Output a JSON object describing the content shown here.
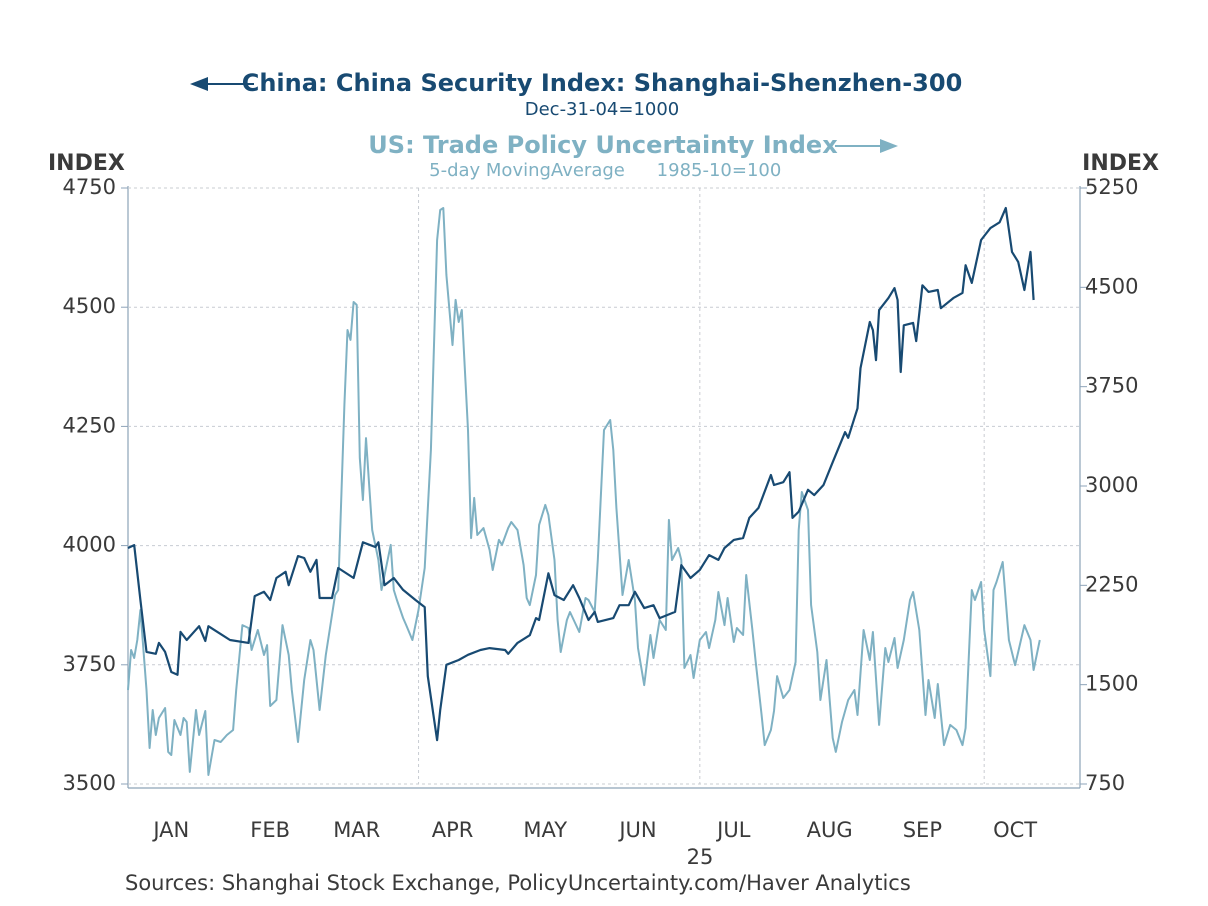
{
  "chart_data": {
    "type": "line",
    "y_label": "INDEX",
    "y2_label": "INDEX",
    "x_sublabel": "25",
    "source": "Sources:  Shanghai Stock Exchange, PolicyUncertainty.com/Haver Analytics",
    "xlim": [
      -4,
      304
    ],
    "xticks": [
      {
        "value": 10,
        "label": "JAN"
      },
      {
        "value": 42,
        "label": "FEB"
      },
      {
        "value": 70,
        "label": "MAR"
      },
      {
        "value": 101,
        "label": "APR"
      },
      {
        "value": 131,
        "label": "MAY"
      },
      {
        "value": 161,
        "label": "JUN"
      },
      {
        "value": 192,
        "label": "JUL"
      },
      {
        "value": 223,
        "label": "AUG"
      },
      {
        "value": 253,
        "label": "SEP"
      },
      {
        "value": 283,
        "label": "OCT"
      }
    ],
    "xgrid": [
      90,
      181,
      273
    ],
    "ylim": [
      3500,
      4750
    ],
    "yticks": [
      3500,
      3750,
      4000,
      4250,
      4500,
      4750
    ],
    "y2lim": [
      750,
      5250
    ],
    "y2ticks": [
      750,
      1500,
      2250,
      3000,
      3750,
      4500,
      5250
    ],
    "grid": true,
    "series": [
      {
        "name": "China: China Security Index: Shanghai-Shenzhen-300",
        "subtitle": "Dec-31-04=1000",
        "color": "#184a72",
        "axis": "y",
        "x": [
          -4,
          -2,
          0,
          2,
          5,
          6,
          8,
          10,
          12,
          13,
          15,
          19,
          21,
          22,
          29,
          35,
          37,
          40,
          42,
          44,
          47,
          48,
          51,
          53,
          55,
          57,
          58,
          62,
          64,
          69,
          72,
          76,
          77,
          79,
          82,
          85,
          89,
          92,
          93,
          96,
          97,
          99,
          103,
          106,
          110,
          113,
          118,
          119,
          122,
          126,
          128,
          129,
          132,
          134,
          137,
          140,
          142,
          145,
          147,
          148,
          153,
          155,
          158,
          160,
          163,
          166,
          168,
          173,
          175,
          178,
          181,
          184,
          187,
          189,
          192,
          195,
          197,
          200,
          204,
          205,
          208,
          210,
          211,
          213,
          216,
          218,
          221,
          224,
          228,
          229,
          232,
          233,
          236,
          237,
          238,
          239,
          242,
          244,
          245,
          246,
          247,
          250,
          251,
          253,
          255,
          258,
          259,
          263,
          266,
          267,
          269,
          272,
          275,
          278,
          280,
          282,
          284,
          286,
          288,
          289
        ],
        "values": [
          3995,
          4001,
          3886,
          3777,
          3773,
          3796,
          3777,
          3735,
          3729,
          3819,
          3802,
          3831,
          3800,
          3831,
          3802,
          3796,
          3894,
          3903,
          3886,
          3932,
          3945,
          3917,
          3978,
          3974,
          3945,
          3970,
          3890,
          3890,
          3953,
          3932,
          4007,
          3997,
          4007,
          3917,
          3932,
          3907,
          3886,
          3871,
          3726,
          3592,
          3655,
          3750,
          3760,
          3771,
          3781,
          3785,
          3781,
          3773,
          3796,
          3812,
          3848,
          3844,
          3942,
          3896,
          3886,
          3917,
          3890,
          3844,
          3861,
          3840,
          3848,
          3875,
          3875,
          3903,
          3869,
          3875,
          3848,
          3861,
          3959,
          3932,
          3949,
          3980,
          3970,
          3995,
          4012,
          4016,
          4058,
          4079,
          4148,
          4127,
          4133,
          4154,
          4058,
          4071,
          4117,
          4106,
          4127,
          4175,
          4238,
          4226,
          4288,
          4372,
          4469,
          4452,
          4389,
          4494,
          4519,
          4540,
          4515,
          4364,
          4462,
          4467,
          4429,
          4546,
          4532,
          4536,
          4498,
          4519,
          4530,
          4588,
          4551,
          4641,
          4666,
          4678,
          4708,
          4616,
          4595,
          4536,
          4616,
          4515
        ]
      },
      {
        "name": "US: Trade Policy Uncertainty Index",
        "subtitle": "5-day MovingAverage",
        "subtitle2": "1985-10=100",
        "color": "#7fb1c3",
        "axis": "y2",
        "x": [
          -4,
          -3,
          -2,
          -1,
          0,
          2,
          3,
          4,
          5,
          6,
          8,
          9,
          10,
          11,
          13,
          14,
          15,
          16,
          18,
          19,
          21,
          22,
          24,
          26,
          28,
          30,
          31,
          33,
          35,
          36,
          38,
          40,
          41,
          42,
          44,
          46,
          48,
          49,
          51,
          53,
          55,
          56,
          58,
          60,
          61,
          63,
          64,
          66,
          67,
          68,
          69,
          70,
          71,
          72,
          73,
          75,
          77,
          78,
          81,
          82,
          83,
          85,
          86,
          88,
          90,
          92,
          94,
          96,
          97,
          98,
          99,
          101,
          102,
          103,
          104,
          106,
          107,
          108,
          109,
          111,
          113,
          114,
          116,
          117,
          119,
          120,
          122,
          124,
          125,
          126,
          128,
          129,
          131,
          132,
          134,
          135,
          136,
          138,
          139,
          142,
          144,
          145,
          147,
          148,
          150,
          152,
          153,
          154,
          156,
          158,
          160,
          161,
          163,
          165,
          166,
          168,
          170,
          171,
          172,
          174,
          175,
          176,
          178,
          179,
          181,
          183,
          184,
          186,
          187,
          189,
          190,
          192,
          193,
          195,
          196,
          198,
          199,
          201,
          202,
          204,
          205,
          206,
          208,
          210,
          212,
          213,
          214,
          216,
          217,
          219,
          220,
          222,
          224,
          225,
          227,
          229,
          231,
          232,
          234,
          236,
          237,
          239,
          241,
          242,
          244,
          245,
          247,
          249,
          250,
          252,
          254,
          255,
          257,
          258,
          260,
          262,
          264,
          266,
          267,
          269,
          270,
          272,
          273,
          275,
          276,
          277,
          279,
          281,
          283,
          284,
          286,
          288,
          289,
          291
        ],
        "values": [
          1460,
          1762,
          1701,
          1837,
          2064,
          1460,
          1022,
          1309,
          1120,
          1248,
          1324,
          992,
          969,
          1233,
          1120,
          1248,
          1218,
          841,
          1309,
          1120,
          1301,
          818,
          1082,
          1067,
          1120,
          1158,
          1460,
          1950,
          1928,
          1762,
          1913,
          1724,
          1799,
          1339,
          1384,
          1950,
          1724,
          1460,
          1067,
          1535,
          1837,
          1762,
          1309,
          1724,
          1875,
          2177,
          2215,
          3612,
          4178,
          4103,
          4389,
          4367,
          3211,
          2894,
          3362,
          2668,
          2441,
          2215,
          2555,
          2215,
          2139,
          2003,
          1950,
          1837,
          2064,
          2381,
          3272,
          4857,
          5084,
          5099,
          4593,
          4064,
          4405,
          4238,
          4329,
          3423,
          2607,
          2910,
          2630,
          2683,
          2517,
          2366,
          2593,
          2555,
          2683,
          2728,
          2668,
          2404,
          2154,
          2101,
          2328,
          2706,
          2857,
          2781,
          2441,
          1988,
          1747,
          1988,
          2049,
          1898,
          2154,
          2139,
          2049,
          2441,
          3423,
          3498,
          3272,
          2834,
          2177,
          2441,
          2139,
          1777,
          1497,
          1875,
          1701,
          1988,
          1913,
          2744,
          2441,
          2532,
          2441,
          1626,
          1724,
          1550,
          1837,
          1898,
          1777,
          1988,
          2200,
          1950,
          2154,
          1822,
          1928,
          1875,
          2328,
          1913,
          1686,
          1271,
          1044,
          1158,
          1301,
          1565,
          1399,
          1460,
          1671,
          2668,
          2955,
          2819,
          2101,
          1747,
          1384,
          1686,
          1097,
          992,
          1218,
          1384,
          1460,
          1271,
          1913,
          1686,
          1898,
          1196,
          1777,
          1671,
          1852,
          1626,
          1837,
          2139,
          2200,
          1913,
          1271,
          1535,
          1248,
          1505,
          1044,
          1196,
          1158,
          1044,
          1173,
          2215,
          2139,
          2275,
          1913,
          1565,
          2215,
          2275,
          2426,
          1837,
          1648,
          1747,
          1950,
          1837,
          1611,
          1837
        ]
      }
    ]
  }
}
